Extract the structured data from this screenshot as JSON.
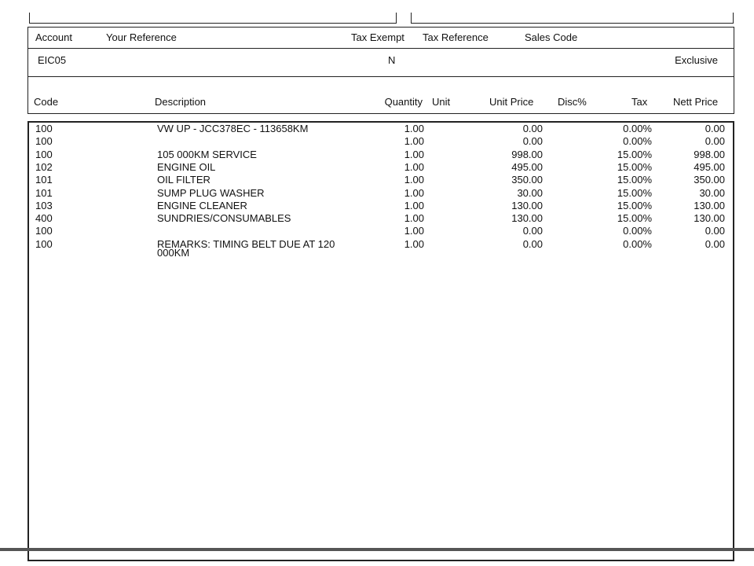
{
  "info": {
    "labels": [
      "Account",
      "Your Reference",
      "Tax Exempt",
      "Tax Reference",
      "Sales Code"
    ],
    "account": "EIC05",
    "tax_exempt": "N",
    "tax_mode": "Exclusive"
  },
  "table": {
    "columns": [
      "Code",
      "Description",
      "Quantity",
      "Unit",
      "Unit Price",
      "Disc%",
      "Tax",
      "Nett Price"
    ],
    "rows": [
      {
        "code": "100",
        "description": "VW UP - JCC378EC - 113658KM",
        "quantity": "1.00",
        "unit_price": "0.00",
        "tax": "0.00%",
        "nett_price": "0.00"
      },
      {
        "code": "100",
        "description": null,
        "quantity": "1.00",
        "unit_price": "0.00",
        "tax": "0.00%",
        "nett_price": "0.00"
      },
      {
        "code": "100",
        "description": "105 000KM SERVICE",
        "quantity": "1.00",
        "unit_price": "998.00",
        "tax": "15.00%",
        "nett_price": "998.00"
      },
      {
        "code": "102",
        "description": "ENGINE OIL",
        "quantity": "1.00",
        "unit_price": "495.00",
        "tax": "15.00%",
        "nett_price": "495.00"
      },
      {
        "code": "101",
        "description": "OIL FILTER",
        "quantity": "1.00",
        "unit_price": "350.00",
        "tax": "15.00%",
        "nett_price": "350.00"
      },
      {
        "code": "101",
        "description": "SUMP PLUG WASHER",
        "quantity": "1.00",
        "unit_price": "30.00",
        "tax": "15.00%",
        "nett_price": "30.00"
      },
      {
        "code": "103",
        "description": "ENGINE CLEANER",
        "quantity": "1.00",
        "unit_price": "130.00",
        "tax": "15.00%",
        "nett_price": "130.00"
      },
      {
        "code": "400",
        "description": "SUNDRIES/CONSUMABLES",
        "quantity": "1.00",
        "unit_price": "130.00",
        "tax": "15.00%",
        "nett_price": "130.00"
      },
      {
        "code": "100",
        "description": null,
        "quantity": "1.00",
        "unit_price": "0.00",
        "tax": "0.00%",
        "nett_price": "0.00"
      },
      {
        "code": "100",
        "description": "REMARKS:  TIMING BELT DUE AT 120 000KM",
        "quantity": "1.00",
        "unit_price": "0.00",
        "tax": "0.00%",
        "nett_price": "0.00"
      }
    ]
  }
}
